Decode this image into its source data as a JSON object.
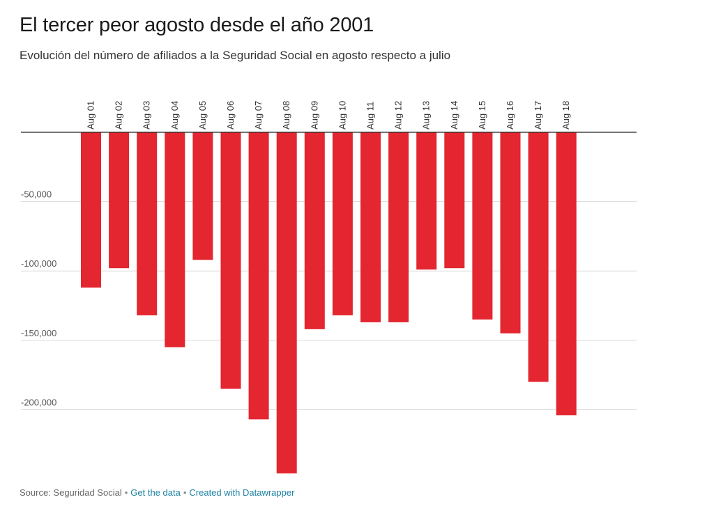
{
  "header": {
    "title": "El tercer peor agosto desde el año 2001",
    "subtitle": "Evolución del número de afiliados a la Seguridad Social en agosto respecto a julio"
  },
  "footer": {
    "source": "Source: Seguridad Social",
    "get_data": "Get the data",
    "created_with": "Created with Datawrapper"
  },
  "colors": {
    "bar": "#e3262f",
    "grid": "#d9d9d9",
    "baseline": "#222222"
  },
  "chart_data": {
    "type": "bar",
    "title": "El tercer peor agosto desde el año 2001",
    "subtitle": "Evolución del número de afiliados a la Seguridad Social en agosto respecto a julio",
    "xlabel": "",
    "ylabel": "",
    "categories": [
      "Aug 01",
      "Aug 02",
      "Aug 03",
      "Aug 04",
      "Aug 05",
      "Aug 06",
      "Aug 07",
      "Aug 08",
      "Aug 09",
      "Aug 10",
      "Aug 11",
      "Aug 12",
      "Aug 13",
      "Aug 14",
      "Aug 15",
      "Aug 16",
      "Aug 17",
      "Aug 18"
    ],
    "values": [
      -112000,
      -98000,
      -132000,
      -155000,
      -92000,
      -185000,
      -207000,
      -246000,
      -142000,
      -132000,
      -137000,
      -137000,
      -99000,
      -98000,
      -135000,
      -145000,
      -180000,
      -204000
    ],
    "ylim": [
      -250000,
      0
    ],
    "yticks": [
      -50000,
      -100000,
      -150000,
      -200000
    ],
    "ytick_labels": [
      "-50,000",
      "-100,000",
      "-150,000",
      "-200,000"
    ],
    "grid": true,
    "category_labels_position": "top-rotated"
  }
}
